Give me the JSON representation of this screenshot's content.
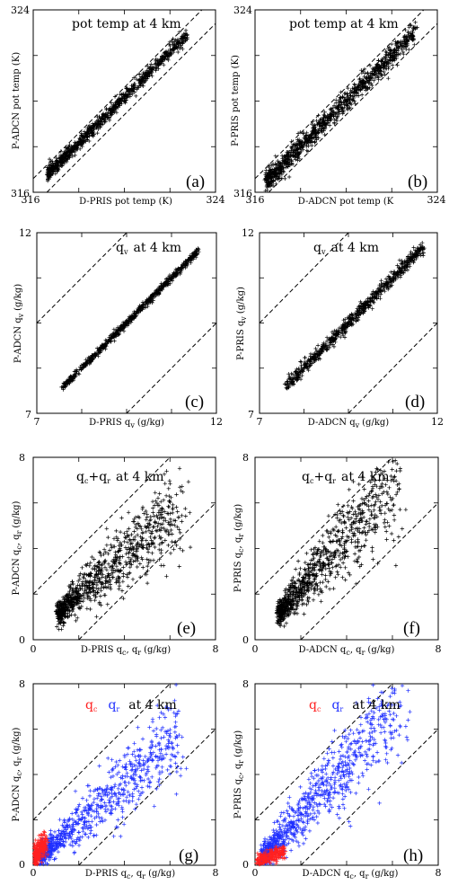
{
  "panel_titles": {
    "pot_temp": "pot temp at 4 km",
    "qv_sym": "q",
    "qv_sub": "v",
    "qv_rest": "at 4 km",
    "qcqr_a": "q",
    "qcqr_a_sub": "c",
    "qcqr_plus": "+",
    "qcqr_b": "q",
    "qcqr_b_sub": "r",
    "qcqr_rest": "at 4 km",
    "sep_qc": "q",
    "sep_qc_sub": "c",
    "sep_qr": "q",
    "sep_qr_sub": "r",
    "sep_rest": "at 4 km"
  },
  "axis_text": {
    "p_adcn_pt": "P-ADCN pot temp (K)",
    "p_pris_pt": "P-PRIS pot temp (K)",
    "d_pris_pt": "D-PRIS pot temp (K)",
    "d_adcn_pt": "D-ADCN pot temp (K",
    "p_adcn_qv_pre": "P-ADCN q",
    "p_pris_qv_pre": "P-PRIS q",
    "d_pris_qv_pre": "D-PRIS q",
    "d_adcn_qv_pre": "D-ADCN q",
    "qv_sub": "v",
    "qv_unit": "(g/kg)",
    "p_adcn_qcqr_pre": "P-ADCN q",
    "p_pris_qcqr_pre": "P-PRIS q",
    "d_pris_qcqr_pre": "D-PRIS q",
    "d_adcn_qcqr_pre": "D-ADCN q",
    "sub_c": "c",
    "comma_q": ", q",
    "sub_r": "r",
    "unit": "(g/kg)"
  },
  "colors": {
    "marker": "#000000",
    "qc": "#ff2020",
    "qr": "#1f2fff"
  },
  "chart_data": [
    {
      "panel": "(a)",
      "type": "scatter",
      "title": "pot temp at 4 km",
      "xlabel": "D-PRIS pot temp (K)",
      "ylabel": "P-ADCN pot temp (K)",
      "xlim": [
        316,
        324
      ],
      "ylim": [
        316,
        324
      ],
      "xticks": [
        "316",
        "324"
      ],
      "yticks": [
        "316",
        "324"
      ],
      "reference_lines": [
        "y = x + 0.6",
        "y = x - 0.6"
      ],
      "series": [
        {
          "values": "dense cloud along 1:1 line, x 316.8-322.6, y 317.0-322.8"
        }
      ]
    },
    {
      "panel": "(b)",
      "type": "scatter",
      "title": "pot temp at 4 km",
      "xlabel": "D-ADCN pot temp (K",
      "ylabel": "P-PRIS pot temp (K)",
      "xlim": [
        316,
        324
      ],
      "ylim": [
        316,
        324
      ],
      "xticks": [
        "316",
        "324"
      ],
      "yticks": [
        "316",
        "324"
      ],
      "reference_lines": [
        "y = x + 0.6",
        "y = x - 0.6"
      ],
      "series": [
        {
          "values": "dense cloud along 1:1 line, x 316.6-322.9, y 316.6-323.0"
        }
      ]
    },
    {
      "panel": "(c)",
      "type": "scatter",
      "title": "q_v at 4 km",
      "xlabel": "D-PRIS q_v (g/kg)",
      "ylabel": "P-ADCN q_v (g/kg)",
      "xlim": [
        7,
        12
      ],
      "ylim": [
        7,
        12
      ],
      "xticks": [
        "7",
        "12"
      ],
      "yticks": [
        "7",
        "12"
      ],
      "reference_lines": [
        "y = x + 2.5",
        "y = x - 2.5"
      ],
      "series": [
        {
          "values": "tight cloud along 1:1 line, x 7.7-11.5"
        }
      ]
    },
    {
      "panel": "(d)",
      "type": "scatter",
      "title": "q_v at 4 km",
      "xlabel": "D-ADCN q_v (g/kg)",
      "ylabel": "P-PRIS q_v (g/kg)",
      "xlim": [
        7,
        12
      ],
      "ylim": [
        7,
        12
      ],
      "xticks": [
        "7",
        "12"
      ],
      "yticks": [
        "7",
        "12"
      ],
      "reference_lines": [
        "y = x + 2.5",
        "y = x - 2.5"
      ],
      "series": [
        {
          "values": "cloud along 1:1 line, x 7.8-11.6"
        }
      ]
    },
    {
      "panel": "(e)",
      "type": "scatter",
      "title": "q_c+q_r at 4 km",
      "xlabel": "D-PRIS q_c, q_r (g/kg)",
      "ylabel": "P-ADCN q_c, q_r (g/kg)",
      "xlim": [
        0,
        8
      ],
      "ylim": [
        0,
        8
      ],
      "xticks": [
        "0",
        "8"
      ],
      "yticks": [
        "0",
        "8"
      ],
      "reference_lines": [
        "y = x + 2",
        "y = x - 2"
      ],
      "series": [
        {
          "values": "dense near (1.2,1.2), spreading to (6.5,5.5); slope ~0.85"
        }
      ]
    },
    {
      "panel": "(f)",
      "type": "scatter",
      "title": "q_c+q_r at 4 km",
      "xlabel": "D-ADCN q_c, q_r (g/kg)",
      "ylabel": "P-PRIS q_c, q_r (g/kg)",
      "xlim": [
        0,
        8
      ],
      "ylim": [
        0,
        8
      ],
      "xticks": [
        "0",
        "8"
      ],
      "yticks": [
        "0",
        "8"
      ],
      "reference_lines": [
        "y = x + 2",
        "y = x - 2"
      ],
      "series": [
        {
          "values": "dense near (1.1,1.3), spreading to (6.3,7.0); slope ~1.1"
        }
      ]
    },
    {
      "panel": "(g)",
      "type": "scatter",
      "title": "q_c q_r at 4 km",
      "xlabel": "D-PRIS q_c, q_r (g/kg)",
      "ylabel": "P-ADCN q_c, q_r (g/kg)",
      "xlim": [
        0,
        8
      ],
      "ylim": [
        0,
        8
      ],
      "xticks": [
        "0",
        "8"
      ],
      "yticks": [
        "0",
        "8"
      ],
      "reference_lines": [
        "y = x + 2",
        "y = x - 2"
      ],
      "series": [
        {
          "name": "q_c",
          "color": "#ff2020",
          "values": "cluster x 0.0-0.6, y 0.0-1.2"
        },
        {
          "name": "q_r",
          "color": "#1f2fff",
          "values": "x 0.3-6.6, y 0.1-5.8; slope ~0.85"
        }
      ]
    },
    {
      "panel": "(h)",
      "type": "scatter",
      "title": "q_c q_r at 4 km",
      "xlabel": "D-ADCN q_c, q_r (g/kg)",
      "ylabel": "P-PRIS q_c, q_r (g/kg)",
      "xlim": [
        0,
        8
      ],
      "ylim": [
        0,
        8
      ],
      "xticks": [
        "0",
        "8"
      ],
      "yticks": [
        "0",
        "8"
      ],
      "reference_lines": [
        "y = x + 2",
        "y = x - 2"
      ],
      "series": [
        {
          "name": "q_c",
          "color": "#ff2020",
          "values": "cluster x 0.1-1.3, y 0.0-0.6"
        },
        {
          "name": "q_r",
          "color": "#1f2fff",
          "values": "x 0.3-6.5, y 0.2-7.0; slope ~1.1"
        }
      ]
    }
  ]
}
